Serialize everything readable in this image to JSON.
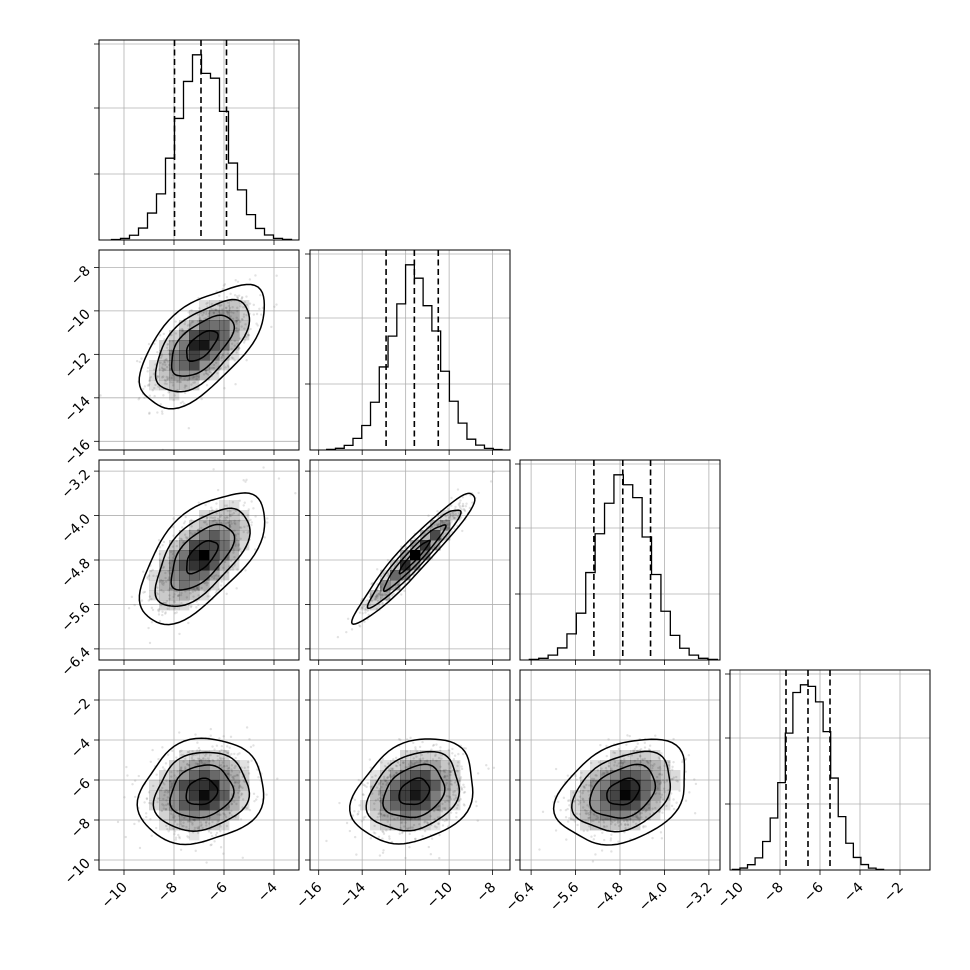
{
  "chart_data": {
    "type": "corner",
    "parameters": [
      {
        "range": [
          -11,
          -3
        ],
        "ticks": [
          -10,
          -8,
          -6,
          -4
        ],
        "tick_labels": [
          "−10",
          "−8",
          "−6",
          "−4"
        ],
        "mean": -6.9,
        "sigma": 1.0,
        "quantiles": [
          -7.98,
          -6.92,
          -5.9
        ]
      },
      {
        "range": [
          -16.4,
          -7.2
        ],
        "ticks": [
          -16,
          -14,
          -12,
          -10,
          -8
        ],
        "tick_labels": [
          "−16",
          "−14",
          "−12",
          "−10",
          "−8"
        ],
        "mean": -11.6,
        "sigma": 1.12,
        "quantiles": [
          -12.9,
          -11.6,
          -10.5
        ]
      },
      {
        "range": [
          -6.6,
          -3.0
        ],
        "ticks": [
          -6.4,
          -5.6,
          -4.8,
          -4.0,
          -3.2
        ],
        "tick_labels": [
          "−6.4",
          "−5.6",
          "−4.8",
          "−4.0",
          "−3.2"
        ],
        "mean": -4.74,
        "sigma": 0.47,
        "quantiles": [
          -5.27,
          -4.75,
          -4.25
        ]
      },
      {
        "range": [
          -10.5,
          -0.5
        ],
        "ticks": [
          -10,
          -8,
          -6,
          -4,
          -2
        ],
        "tick_labels": [
          "−10",
          "−8",
          "−6",
          "−4",
          "−2"
        ],
        "mean": -6.6,
        "sigma": 1.05,
        "quantiles": [
          -7.7,
          -6.6,
          -5.5
        ]
      }
    ],
    "correlations": {
      "1-0": 0.6,
      "2-0": 0.6,
      "2-1": 0.95,
      "3-0": 0.15,
      "3-1": 0.25,
      "3-2": 0.3
    },
    "histogram_bins": 20,
    "contour_levels_sigma": [
      0.5,
      1.0,
      1.5,
      2.0
    ],
    "grid": true,
    "histogram_tick_labels": false
  }
}
